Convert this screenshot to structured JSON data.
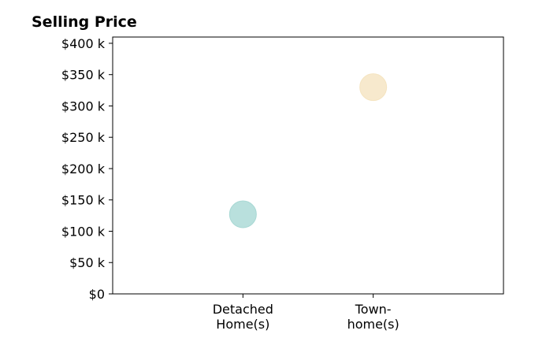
{
  "chart_data": {
    "type": "scatter",
    "title": "Selling Price",
    "xlabel": "",
    "ylabel": "",
    "categories": [
      [
        "Detached",
        "Home(s)"
      ],
      [
        "Town-",
        "home(s)"
      ]
    ],
    "values": [
      127000,
      330000
    ],
    "point_colors": [
      "#a8d8d4",
      "#f5e4c0"
    ],
    "ylim": [
      0,
      410000
    ],
    "yticks": [
      0,
      50000,
      100000,
      150000,
      200000,
      250000,
      300000,
      350000,
      400000
    ],
    "ytick_labels": [
      "$0",
      "$50 k",
      "$100 k",
      "$150 k",
      "$200 k",
      "$250 k",
      "$300 k",
      "$350 k",
      "$400 k"
    ],
    "grid": false,
    "legend": "none"
  }
}
